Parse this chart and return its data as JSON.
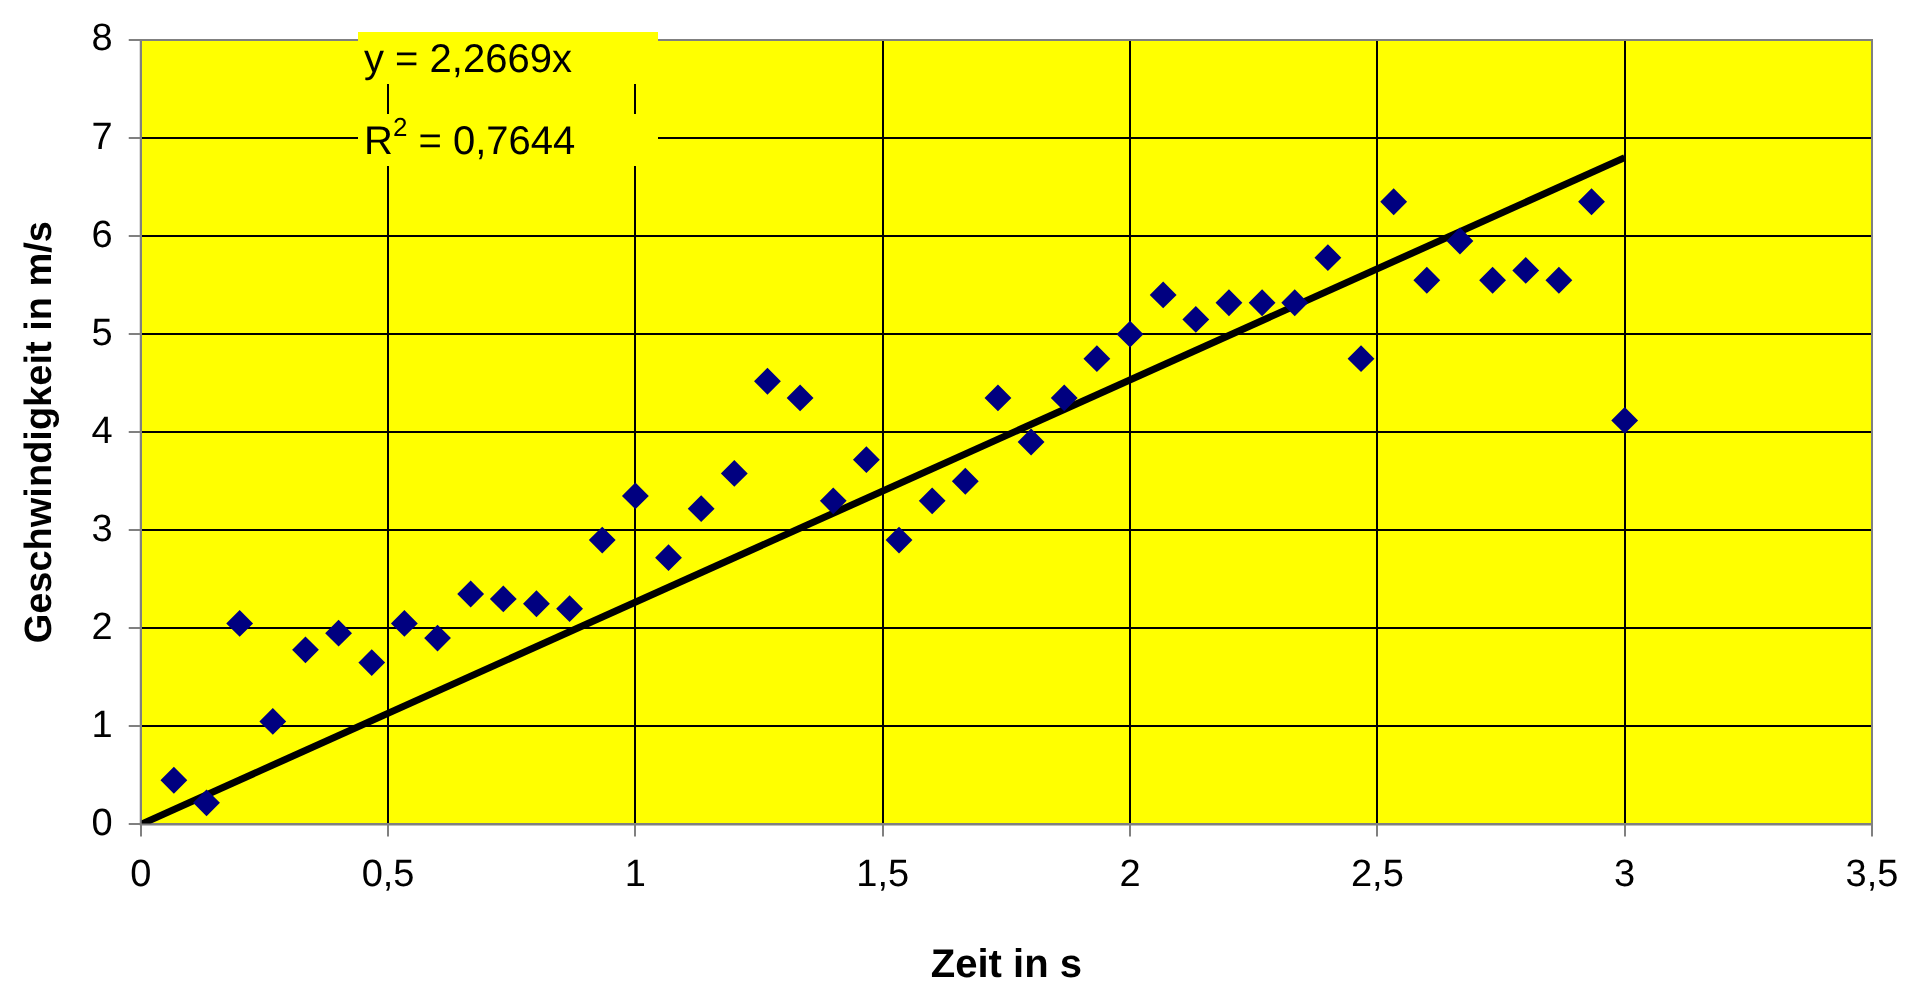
{
  "chart_data": {
    "type": "scatter",
    "xlabel": "Zeit in s",
    "ylabel": "Geschwindigkeit in m/s",
    "annotations": [
      "y = 2,2669x",
      "R$^{2}$ = 0,7644"
    ],
    "xlim": [
      0,
      3.5
    ],
    "xticks": [
      0,
      {
        "value": 0.5,
        "label": "0,5"
      },
      1,
      {
        "value": 1.5,
        "label": "1,5"
      },
      2,
      {
        "value": 2.5,
        "label": "2,5"
      },
      3,
      {
        "value": 3.5,
        "label": "3,5"
      }
    ],
    "ylim": [
      0,
      8
    ],
    "yticks": [
      0,
      1,
      2,
      3,
      4,
      5,
      6,
      7,
      8
    ],
    "grid": true,
    "legend": false,
    "marker": "diamond",
    "series": [
      {
        "color": "#000080",
        "x": [
          0.067,
          0.133,
          0.2,
          0.267,
          0.333,
          0.4,
          0.467,
          0.533,
          0.6,
          0.667,
          0.733,
          0.8,
          0.867,
          0.933,
          1.0,
          1.067,
          1.133,
          1.2,
          1.267,
          1.333,
          1.4,
          1.467,
          1.533,
          1.6,
          1.667,
          1.733,
          1.8,
          1.867,
          1.933,
          2.0,
          2.067,
          2.133,
          2.2,
          2.267,
          2.333,
          2.4,
          2.467,
          2.533,
          2.6,
          2.667,
          2.733,
          2.8,
          2.867,
          2.933,
          3.0
        ],
        "values": [
          0.45,
          0.22,
          2.05,
          1.05,
          1.78,
          1.95,
          1.65,
          2.05,
          1.9,
          2.35,
          2.3,
          2.25,
          2.2,
          2.9,
          3.35,
          2.72,
          3.22,
          3.58,
          4.52,
          4.35,
          3.3,
          3.72,
          2.9,
          3.3,
          3.5,
          4.35,
          3.9,
          4.35,
          4.75,
          5.0,
          5.4,
          5.15,
          5.32,
          5.32,
          5.32,
          5.78,
          4.75,
          6.35,
          5.55,
          5.95,
          5.55,
          5.65,
          5.55,
          6.35,
          4.12
        ]
      },
      {
        "type": "line",
        "marker": "none",
        "color": "#000000",
        "x": [
          0,
          3
        ],
        "values": [
          0,
          6.8
        ]
      }
    ]
  }
}
